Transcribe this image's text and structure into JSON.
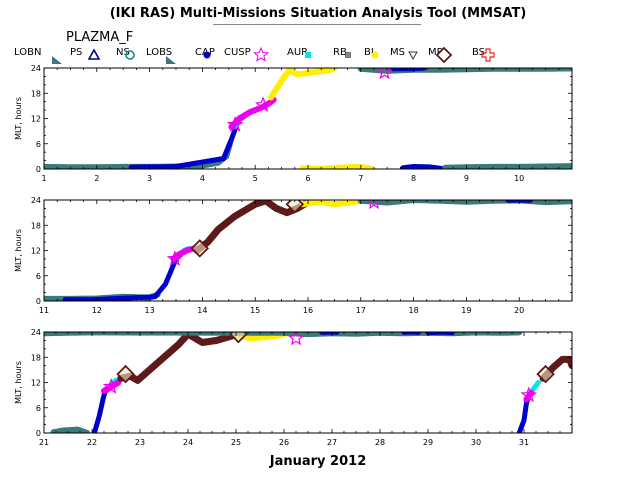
{
  "header": {
    "title": "(IKI RAS) Multi-Missions Situation Analysis Tool (MMSAT)",
    "mission": "PLAZMA_F"
  },
  "legend": [
    {
      "label": "LOBN",
      "icon": "filled-triangle-icon",
      "color": "#3a7a7a"
    },
    {
      "label": "PS",
      "icon": "triangle-icon",
      "color": "#00008b"
    },
    {
      "label": "NS",
      "icon": "circle-icon",
      "color": "#008b8b"
    },
    {
      "label": "LOBS",
      "icon": "filled-triangle-icon",
      "color": "#3a7a7a"
    },
    {
      "label": "CAP",
      "icon": "filled-circle-icon",
      "color": "#0000cd"
    },
    {
      "label": "CUSP",
      "icon": "star-icon",
      "color": "#ee00ee"
    },
    {
      "label": "AUR",
      "icon": "filled-square-icon",
      "color": "#00e5ee"
    },
    {
      "label": "RB",
      "icon": "small-square-icon",
      "color": "#888888"
    },
    {
      "label": "BL",
      "icon": "filled-circle-icon",
      "color": "#ffee00"
    },
    {
      "label": "MS",
      "icon": "triangle-down-icon",
      "color": "#333333"
    },
    {
      "label": "MP",
      "icon": "diamond-icon",
      "color": "#5c1a1a"
    },
    {
      "label": "BS",
      "icon": "cross-icon",
      "color": "#ee2222"
    }
  ],
  "chart_data": [
    {
      "type": "scatter",
      "ylabel": "MLT, hours",
      "xlim": [
        1,
        11
      ],
      "ylim": [
        0,
        24
      ],
      "xticks": [
        1,
        2,
        3,
        4,
        5,
        6,
        7,
        8,
        9,
        10
      ],
      "yticks": [
        0,
        6,
        12,
        18,
        24
      ],
      "series": [
        {
          "name": "LOBN",
          "color": "#3a7a7a",
          "width": 6,
          "points": [
            [
              1.0,
              0.5
            ],
            [
              1.5,
              0.4
            ],
            [
              2.0,
              0.4
            ],
            [
              2.5,
              0.5
            ],
            [
              3.0,
              0.5
            ],
            [
              3.5,
              0.6
            ],
            [
              4.0,
              0.8
            ],
            [
              4.3,
              1.5
            ],
            [
              4.45,
              3.0
            ],
            [
              4.52,
              6.0
            ]
          ]
        },
        {
          "name": "CAP",
          "color": "#0000cd",
          "width": 5,
          "points": [
            [
              2.65,
              0.4
            ],
            [
              2.9,
              0.5
            ],
            [
              3.2,
              0.5
            ],
            [
              3.5,
              0.6
            ],
            [
              4.4,
              2.5
            ],
            [
              4.55,
              7.0
            ],
            [
              4.65,
              10.5
            ]
          ]
        },
        {
          "name": "AUR",
          "color": "#00e5ee",
          "width": 5,
          "points": [
            [
              4.62,
              10.0
            ],
            [
              4.7,
              11.5
            ],
            [
              4.8,
              12.5
            ]
          ]
        },
        {
          "name": "CUSP",
          "color": "#ee00ee",
          "width": 6,
          "points": [
            [
              4.55,
              10.0
            ],
            [
              4.7,
              12.0
            ],
            [
              4.9,
              13.5
            ],
            [
              5.1,
              14.5
            ],
            [
              5.25,
              15.5
            ],
            [
              5.35,
              16.5
            ]
          ]
        },
        {
          "name": "BL",
          "color": "#ffee00",
          "width": 6,
          "points": [
            [
              5.3,
              17.0
            ],
            [
              5.5,
              21.0
            ],
            [
              5.65,
              23.5
            ],
            [
              5.8,
              22.5
            ],
            [
              6.1,
              23.0
            ],
            [
              6.4,
              23.5
            ],
            [
              6.5,
              24.0
            ]
          ]
        },
        {
          "name": "BL",
          "color": "#ffee00",
          "width": 6,
          "points": [
            [
              5.9,
              0.2
            ],
            [
              6.2,
              0.0
            ],
            [
              6.6,
              0.3
            ],
            [
              7.0,
              0.5
            ],
            [
              7.2,
              0.0
            ]
          ]
        },
        {
          "name": "LOBS",
          "color": "#3a7a7a",
          "width": 6,
          "points": [
            [
              7.0,
              23.8
            ],
            [
              7.5,
              23.3
            ],
            [
              8.0,
              23.6
            ],
            [
              8.5,
              23.6
            ],
            [
              9.0,
              23.7
            ],
            [
              9.5,
              23.8
            ],
            [
              10.5,
              23.8
            ],
            [
              11.0,
              23.9
            ]
          ]
        },
        {
          "name": "CAP",
          "color": "#0000cd",
          "width": 5,
          "points": [
            [
              7.6,
              23.8
            ],
            [
              8.0,
              23.8
            ],
            [
              8.2,
              24.0
            ]
          ]
        },
        {
          "name": "CAP",
          "color": "#0000cd",
          "width": 5,
          "points": [
            [
              7.8,
              0.3
            ],
            [
              8.0,
              0.6
            ],
            [
              8.3,
              0.5
            ],
            [
              8.6,
              0.0
            ]
          ]
        },
        {
          "name": "LOBN",
          "color": "#3a7a7a",
          "width": 6,
          "points": [
            [
              8.6,
              0.3
            ],
            [
              9.0,
              0.4
            ],
            [
              9.5,
              0.5
            ],
            [
              10.0,
              0.5
            ],
            [
              10.5,
              0.6
            ],
            [
              11.0,
              0.7
            ]
          ]
        }
      ],
      "markers": [
        {
          "name": "CUSP",
          "x": 4.62,
          "y": 10.5
        },
        {
          "name": "CUSP",
          "x": 5.15,
          "y": 15.2
        },
        {
          "name": "CUSP",
          "x": 7.45,
          "y": 23.0
        }
      ]
    },
    {
      "type": "scatter",
      "ylabel": "MLT, hours",
      "xlim": [
        11,
        21
      ],
      "ylim": [
        0,
        24
      ],
      "xticks": [
        11,
        12,
        13,
        14,
        15,
        16,
        17,
        18,
        19,
        20
      ],
      "yticks": [
        0,
        6,
        12,
        18,
        24
      ],
      "series": [
        {
          "name": "LOBN",
          "color": "#3a7a7a",
          "width": 6,
          "points": [
            [
              11.0,
              0.5
            ],
            [
              11.5,
              0.5
            ],
            [
              12.0,
              0.6
            ],
            [
              12.5,
              1.0
            ],
            [
              13.0,
              0.8
            ],
            [
              13.15,
              1.5
            ]
          ]
        },
        {
          "name": "CAP",
          "color": "#0000cd",
          "width": 5,
          "points": [
            [
              11.4,
              0.3
            ],
            [
              11.9,
              0.3
            ],
            [
              13.1,
              1.0
            ],
            [
              13.3,
              4.0
            ],
            [
              13.45,
              8.5
            ],
            [
              13.5,
              10.0
            ]
          ]
        },
        {
          "name": "AUR",
          "color": "#00e5ee",
          "width": 5,
          "points": [
            [
              13.55,
              10.5
            ],
            [
              13.65,
              12.0
            ],
            [
              13.75,
              12.5
            ]
          ]
        },
        {
          "name": "CUSP",
          "color": "#ee00ee",
          "width": 6,
          "points": [
            [
              13.45,
              10.0
            ],
            [
              13.55,
              11.0
            ],
            [
              13.7,
              12.0
            ],
            [
              13.85,
              12.5
            ]
          ]
        },
        {
          "name": "MP",
          "color": "#5c1a1a",
          "width": 7,
          "points": [
            [
              13.9,
              12.0
            ],
            [
              14.1,
              14.0
            ],
            [
              14.3,
              17.0
            ],
            [
              14.6,
              20.0
            ],
            [
              15.0,
              23.0
            ],
            [
              15.2,
              23.8
            ],
            [
              15.4,
              22.0
            ],
            [
              15.6,
              21.0
            ],
            [
              15.8,
              22.0
            ],
            [
              16.0,
              23.5
            ]
          ]
        },
        {
          "name": "BL",
          "color": "#ffee00",
          "width": 6,
          "points": [
            [
              15.9,
              23.0
            ],
            [
              16.2,
              23.6
            ],
            [
              16.5,
              23.0
            ],
            [
              16.8,
              23.4
            ],
            [
              17.0,
              23.8
            ]
          ]
        },
        {
          "name": "LOBS",
          "color": "#3a7a7a",
          "width": 6,
          "points": [
            [
              17.0,
              23.8
            ],
            [
              17.5,
              23.4
            ],
            [
              18.0,
              24.0
            ],
            [
              18.5,
              23.8
            ],
            [
              19.0,
              23.6
            ],
            [
              19.5,
              23.8
            ],
            [
              20.0,
              23.9
            ],
            [
              20.5,
              23.5
            ],
            [
              21.0,
              23.7
            ]
          ]
        },
        {
          "name": "CAP",
          "color": "#0000cd",
          "width": 5,
          "points": [
            [
              19.8,
              23.9
            ],
            [
              20.0,
              24.0
            ],
            [
              20.2,
              23.9
            ]
          ]
        }
      ],
      "markers": [
        {
          "name": "CUSP",
          "x": 13.48,
          "y": 10.0
        },
        {
          "name": "MP",
          "x": 13.95,
          "y": 12.5
        },
        {
          "name": "MP",
          "x": 15.75,
          "y": 23.0
        },
        {
          "name": "CUSP",
          "x": 17.25,
          "y": 23.5
        }
      ]
    },
    {
      "type": "scatter",
      "ylabel": "MLT, hours",
      "xlim": [
        21,
        32
      ],
      "ylim": [
        0,
        24
      ],
      "xticks": [
        21,
        22,
        23,
        24,
        25,
        26,
        27,
        28,
        29,
        30,
        31
      ],
      "yticks": [
        0,
        6,
        12,
        18,
        24
      ],
      "series": [
        {
          "name": "LOBN",
          "color": "#3a7a7a",
          "width": 6,
          "points": [
            [
              21.2,
              0.2
            ],
            [
              21.4,
              0.6
            ],
            [
              21.7,
              0.8
            ],
            [
              21.9,
              0.0
            ]
          ]
        },
        {
          "name": "CAP",
          "color": "#0000cd",
          "width": 5,
          "points": [
            [
              22.05,
              0.0
            ],
            [
              22.15,
              4.0
            ],
            [
              22.25,
              9.0
            ],
            [
              22.3,
              10.5
            ]
          ]
        },
        {
          "name": "AUR",
          "color": "#00e5ee",
          "width": 5,
          "points": [
            [
              22.3,
              10.0
            ],
            [
              22.4,
              11.5
            ],
            [
              22.5,
              12.5
            ]
          ]
        },
        {
          "name": "CUSP",
          "color": "#ee00ee",
          "width": 6,
          "points": [
            [
              22.25,
              10.0
            ],
            [
              22.4,
              11.0
            ],
            [
              22.55,
              12.0
            ]
          ]
        },
        {
          "name": "MP",
          "color": "#5c1a1a",
          "width": 7,
          "points": [
            [
              22.6,
              13.0
            ],
            [
              22.8,
              13.5
            ],
            [
              22.95,
              12.5
            ],
            [
              23.2,
              15.0
            ],
            [
              23.5,
              18.0
            ],
            [
              23.8,
              21.0
            ],
            [
              24.0,
              23.5
            ],
            [
              24.3,
              21.5
            ],
            [
              24.6,
              22.0
            ],
            [
              24.9,
              23.0
            ],
            [
              25.0,
              23.5
            ]
          ]
        },
        {
          "name": "BL",
          "color": "#ffee00",
          "width": 6,
          "points": [
            [
              25.0,
              23.5
            ],
            [
              25.3,
              22.5
            ],
            [
              25.6,
              22.8
            ],
            [
              25.9,
              23.2
            ],
            [
              26.1,
              23.8
            ]
          ]
        },
        {
          "name": "LOBS",
          "color": "#3a7a7a",
          "width": 6,
          "points": [
            [
              21.0,
              23.7
            ],
            [
              21.5,
              23.8
            ],
            [
              22.0,
              23.9
            ],
            [
              26.0,
              23.8
            ],
            [
              26.5,
              23.5
            ],
            [
              27.0,
              23.7
            ],
            [
              27.5,
              23.6
            ],
            [
              28.0,
              23.8
            ],
            [
              28.5,
              23.7
            ],
            [
              29.0,
              23.8
            ],
            [
              29.5,
              23.7
            ],
            [
              30.0,
              23.9
            ],
            [
              30.5,
              23.8
            ],
            [
              30.9,
              23.9
            ]
          ]
        },
        {
          "name": "CAP",
          "color": "#0000cd",
          "width": 5,
          "points": [
            [
              26.8,
              23.9
            ],
            [
              27.0,
              24.0
            ],
            [
              27.1,
              23.9
            ]
          ]
        },
        {
          "name": "CAP",
          "color": "#0000cd",
          "width": 5,
          "points": [
            [
              28.5,
              23.9
            ],
            [
              28.7,
              24.0
            ],
            [
              28.8,
              23.9
            ]
          ]
        },
        {
          "name": "CAP",
          "color": "#0000cd",
          "width": 5,
          "points": [
            [
              29.0,
              23.8
            ],
            [
              29.3,
              24.0
            ],
            [
              29.5,
              23.8
            ]
          ]
        },
        {
          "name": "CAP",
          "color": "#0000cd",
          "width": 5,
          "points": [
            [
              30.9,
              0.0
            ],
            [
              31.0,
              3.0
            ],
            [
              31.05,
              7.0
            ],
            [
              31.1,
              9.0
            ]
          ]
        },
        {
          "name": "AUR",
          "color": "#00e5ee",
          "width": 5,
          "points": [
            [
              31.1,
              9.0
            ],
            [
              31.2,
              10.5
            ],
            [
              31.3,
              12.0
            ]
          ]
        },
        {
          "name": "CUSP",
          "color": "#ee00ee",
          "width": 6,
          "points": [
            [
              31.05,
              8.0
            ],
            [
              31.15,
              9.5
            ]
          ]
        },
        {
          "name": "MP",
          "color": "#5c1a1a",
          "width": 7,
          "points": [
            [
              31.4,
              13.0
            ],
            [
              31.6,
              15.5
            ],
            [
              31.8,
              17.5
            ],
            [
              31.95,
              17.5
            ],
            [
              32.0,
              16.0
            ]
          ]
        }
      ],
      "markers": [
        {
          "name": "CUSP",
          "x": 22.4,
          "y": 11.0
        },
        {
          "name": "MP",
          "x": 22.7,
          "y": 14.0
        },
        {
          "name": "MP",
          "x": 25.05,
          "y": 23.5
        },
        {
          "name": "CUSP",
          "x": 26.25,
          "y": 22.5
        },
        {
          "name": "CUSP",
          "x": 31.1,
          "y": 9.0
        },
        {
          "name": "MP",
          "x": 31.45,
          "y": 14.0
        }
      ]
    }
  ],
  "footer": {
    "xlabel": "January 2012"
  }
}
